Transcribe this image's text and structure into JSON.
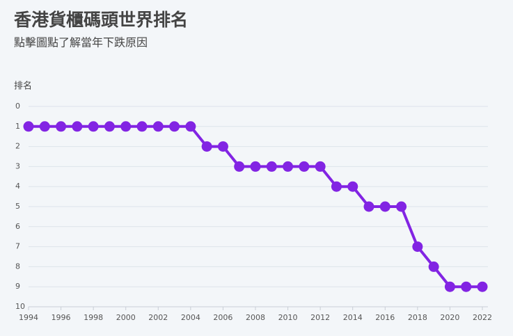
{
  "chart_data": {
    "type": "line",
    "title": "香港貨櫃碼頭世界排名",
    "subtitle": "點擊圖點了解當年下跌原因",
    "y_label": "排名",
    "x": [
      1994,
      1995,
      1996,
      1997,
      1998,
      1999,
      2000,
      2001,
      2002,
      2003,
      2004,
      2005,
      2006,
      2007,
      2008,
      2009,
      2010,
      2011,
      2012,
      2013,
      2014,
      2015,
      2016,
      2017,
      2018,
      2019,
      2020,
      2021,
      2022
    ],
    "series": [
      {
        "name": "排名",
        "color": "#8224e3",
        "values": [
          1,
          1,
          1,
          1,
          1,
          1,
          1,
          1,
          1,
          1,
          1,
          2,
          2,
          3,
          3,
          3,
          3,
          3,
          3,
          4,
          4,
          5,
          5,
          5,
          7,
          8,
          9,
          9,
          9
        ]
      }
    ],
    "xlim": [
      1994,
      2022
    ],
    "xticks": [
      1994,
      1996,
      1998,
      2000,
      2002,
      2004,
      2006,
      2008,
      2010,
      2012,
      2014,
      2016,
      2018,
      2020,
      2022
    ],
    "ylim": [
      0,
      10
    ],
    "yticks": [
      0,
      1,
      2,
      3,
      4,
      5,
      6,
      7,
      8,
      9,
      10
    ],
    "y_inverted": true,
    "grid": true
  }
}
